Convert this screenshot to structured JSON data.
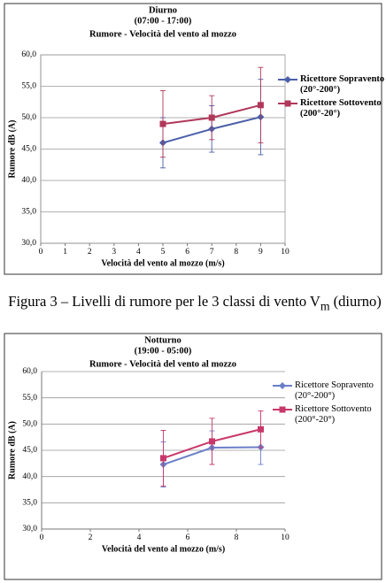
{
  "chart_data": [
    {
      "type": "line",
      "title": "Diurno",
      "subtitle": "(07:00 - 17:00)",
      "heading": "Rumore - Velocità del vento al mozzo",
      "x_label": "Velocità del vento al mozzo  (m/s)",
      "y_label": "Rumore  dB (A)",
      "xlim": [
        0,
        10
      ],
      "xticks": [
        0,
        1,
        2,
        3,
        4,
        5,
        6,
        7,
        8,
        9,
        10
      ],
      "ylim": [
        30,
        60
      ],
      "yticks": [
        {
          "value": 30,
          "label": "30,0"
        },
        {
          "value": 35,
          "label": "35,0"
        },
        {
          "value": 40,
          "label": "40,0"
        },
        {
          "value": 45,
          "label": "45,0"
        },
        {
          "value": 50,
          "label": "50,0"
        },
        {
          "value": 55,
          "label": "55,0"
        },
        {
          "value": 60,
          "label": "60,0"
        }
      ],
      "grid": true,
      "legend": "right",
      "series": [
        {
          "name": "Ricettore Sopravento (20°-200°)",
          "color": "#4a5fa8",
          "marker": "diamond",
          "x": [
            5,
            7,
            9
          ],
          "values": [
            46,
            48.2,
            50.1
          ],
          "errors": [
            4,
            3.7,
            6
          ]
        },
        {
          "name": "Ricettore Sottovento (200°-20°)",
          "color": "#b0385a",
          "marker": "square",
          "x": [
            5,
            7,
            9
          ],
          "values": [
            49,
            50,
            52
          ],
          "errors": [
            5.3,
            3.5,
            6
          ]
        }
      ]
    },
    {
      "type": "line",
      "title": "Notturno",
      "subtitle": "(19:00 - 05:00)",
      "heading": "Rumore - Velocità del vento al mozzo",
      "x_label": "Velocità del vento al mozzo (m/s)",
      "y_label": "Rumore dB (A)",
      "xlim": [
        0,
        10
      ],
      "xticks": [
        0,
        2,
        4,
        6,
        8,
        10
      ],
      "ylim": [
        30,
        60
      ],
      "yticks": [
        {
          "value": 30,
          "label": "30,0"
        },
        {
          "value": 35,
          "label": "35,0"
        },
        {
          "value": 40,
          "label": "40,0"
        },
        {
          "value": 45,
          "label": "45,0"
        },
        {
          "value": 50,
          "label": "50,0"
        },
        {
          "value": 55,
          "label": "55,0"
        },
        {
          "value": 60,
          "label": "60,0"
        }
      ],
      "grid": true,
      "legend": "top-right",
      "series": [
        {
          "name": "Ricettore Sopravento (20°-200°)",
          "color": "#6a7fc8",
          "marker": "diamond",
          "x": [
            5,
            7,
            9
          ],
          "values": [
            42.3,
            45.5,
            45.6
          ],
          "errors": [
            4.3,
            3.2,
            3.3
          ]
        },
        {
          "name": "Ricettore Sottovento (200°-20°)",
          "color": "#c8386a",
          "marker": "square",
          "x": [
            5,
            7,
            9
          ],
          "values": [
            43.5,
            46.7,
            49
          ],
          "errors": [
            5.3,
            4.4,
            3.5
          ]
        }
      ]
    }
  ],
  "caption": {
    "text": "Figura 3 – Livelli di rumore per le 3 classi di vento V",
    "subscript": "m",
    "tail": " (diurno)"
  }
}
